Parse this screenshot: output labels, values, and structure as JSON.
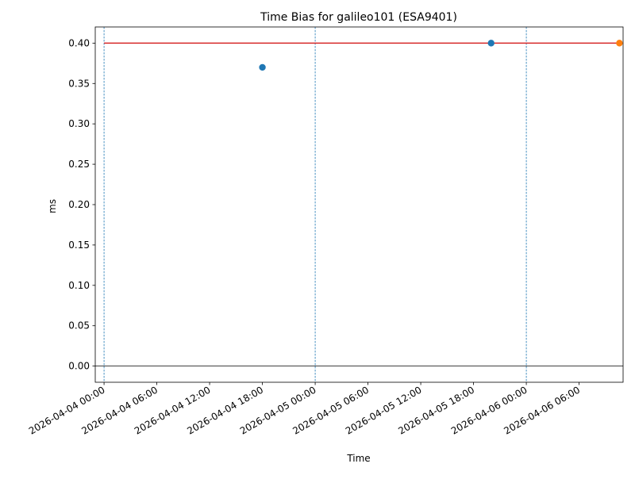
{
  "chart_data": {
    "type": "scatter",
    "title": "Time Bias for galileo101 (ESA9401)",
    "xlabel": "Time",
    "ylabel": "ms",
    "xlim": [
      "2026-04-03 23:00",
      "2026-04-06 11:00"
    ],
    "ylim": [
      -0.02,
      0.42
    ],
    "x_ticks": [
      "2026-04-04 00:00",
      "2026-04-04 06:00",
      "2026-04-04 12:00",
      "2026-04-04 18:00",
      "2026-04-05 00:00",
      "2026-04-05 06:00",
      "2026-04-05 12:00",
      "2026-04-05 18:00",
      "2026-04-06 00:00",
      "2026-04-06 06:00"
    ],
    "y_ticks": [
      0.0,
      0.05,
      0.1,
      0.15,
      0.2,
      0.25,
      0.3,
      0.35,
      0.4
    ],
    "y_tick_labels": [
      "0.00",
      "0.05",
      "0.10",
      "0.15",
      "0.20",
      "0.25",
      "0.30",
      "0.35",
      "0.40"
    ],
    "series": [
      {
        "color": "#1f77b4",
        "points": [
          {
            "x": "2026-04-04 18:00",
            "y": 0.37
          },
          {
            "x": "2026-04-05 20:00",
            "y": 0.4
          }
        ]
      },
      {
        "color": "#ff7f0e",
        "points": [
          {
            "x": "2026-04-06 10:35",
            "y": 0.4
          }
        ]
      }
    ],
    "reference_line": {
      "y": 0.4,
      "color": "#d62728",
      "x_start": "2026-04-04 00:00",
      "x_end": "2026-04-06 10:35"
    },
    "zero_line": {
      "y": 0.0,
      "color": "#000000"
    },
    "vertical_markers": {
      "x": [
        "2026-04-04 00:00",
        "2026-04-05 00:00",
        "2026-04-06 00:00"
      ],
      "color": "#1f77b4",
      "style": "dashed"
    },
    "grid": false,
    "legend": false
  }
}
